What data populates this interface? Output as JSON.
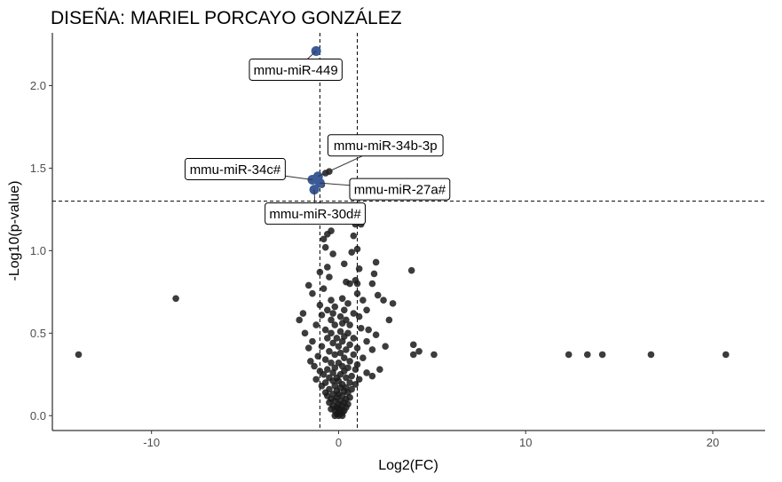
{
  "chart_data": {
    "type": "scatter",
    "title": "DISEÑA: MARIEL PORCAYO GONZÁLEZ",
    "xlabel": "Log2(FC)",
    "ylabel": "-Log10(p-value)",
    "xlim": [
      -15.3,
      22.8
    ],
    "ylim": [
      -0.09,
      2.32
    ],
    "xticks": [
      -10,
      0,
      10,
      20
    ],
    "yticks": [
      0.0,
      0.5,
      1.0,
      1.5,
      2.0
    ],
    "xtick_labels": [
      "-10",
      "0",
      "10",
      "20"
    ],
    "ytick_labels": [
      "0.0",
      "0.5",
      "1.0",
      "1.5",
      "2.0"
    ],
    "grid": false,
    "reference_lines": {
      "vertical": [
        -1,
        1
      ],
      "horizontal": [
        1.3
      ]
    },
    "colors": {
      "nonsignificant": "#1a1a1a",
      "significant": "#3a5a98"
    },
    "significant_points": [
      {
        "x": -1.2,
        "y": 2.21,
        "label": "mmu-miR-449"
      },
      {
        "x": -1.1,
        "y": 1.45,
        "label": "mmu-miR-34b-3p"
      },
      {
        "x": -1.4,
        "y": 1.43,
        "label": "mmu-miR-34c#"
      },
      {
        "x": -1.0,
        "y": 1.41,
        "label": "mmu-miR-27a#"
      },
      {
        "x": -1.3,
        "y": 1.37,
        "label": "mmu-miR-30d#"
      }
    ],
    "points": [
      [
        -13.9,
        0.37
      ],
      [
        -8.7,
        0.71
      ],
      [
        12.3,
        0.37
      ],
      [
        13.3,
        0.37
      ],
      [
        14.1,
        0.37
      ],
      [
        16.7,
        0.37
      ],
      [
        20.7,
        0.37
      ],
      [
        3.9,
        0.88
      ],
      [
        4.0,
        0.43
      ],
      [
        4.3,
        0.39
      ],
      [
        4.0,
        0.37
      ],
      [
        5.1,
        0.37
      ],
      [
        -0.7,
        1.47
      ],
      [
        -0.5,
        1.48
      ],
      [
        -0.9,
        1.4
      ],
      [
        -0.6,
        1.1
      ],
      [
        -0.4,
        1.12
      ],
      [
        0.9,
        1.16
      ],
      [
        1.2,
        1.16
      ],
      [
        0.8,
        1.09
      ],
      [
        -0.8,
        1.07
      ],
      [
        -0.7,
        1.02
      ],
      [
        1.0,
        1.01
      ],
      [
        -0.3,
        0.98
      ],
      [
        0.7,
        0.99
      ],
      [
        -0.6,
        0.9
      ],
      [
        2.0,
        0.93
      ],
      [
        0.3,
        0.92
      ],
      [
        1.1,
        0.89
      ],
      [
        -1.0,
        0.87
      ],
      [
        1.9,
        0.86
      ],
      [
        -0.5,
        0.84
      ],
      [
        0.9,
        0.82
      ],
      [
        -1.6,
        0.79
      ],
      [
        0.4,
        0.81
      ],
      [
        0.6,
        0.8
      ],
      [
        1.0,
        0.8
      ],
      [
        1.8,
        0.8
      ],
      [
        -0.8,
        0.77
      ],
      [
        1.0,
        0.74
      ],
      [
        -1.4,
        0.74
      ],
      [
        2.1,
        0.73
      ],
      [
        -0.4,
        0.7
      ],
      [
        0.2,
        0.71
      ],
      [
        1.3,
        0.7
      ],
      [
        2.4,
        0.7
      ],
      [
        -1.0,
        0.67
      ],
      [
        0.5,
        0.68
      ],
      [
        2.9,
        0.68
      ],
      [
        -0.2,
        0.66
      ],
      [
        0.3,
        0.64
      ],
      [
        -0.6,
        0.64
      ],
      [
        1.5,
        0.64
      ],
      [
        0.8,
        0.62
      ],
      [
        -0.3,
        0.62
      ],
      [
        0.1,
        0.6
      ],
      [
        -0.9,
        0.61
      ],
      [
        1.1,
        0.6
      ],
      [
        -0.4,
        0.58
      ],
      [
        0.4,
        0.58
      ],
      [
        -2.1,
        0.58
      ],
      [
        2.7,
        0.58
      ],
      [
        0.2,
        0.56
      ],
      [
        -0.2,
        0.55
      ],
      [
        -1.2,
        0.55
      ],
      [
        0.6,
        0.55
      ],
      [
        1.2,
        0.53
      ],
      [
        -0.7,
        0.52
      ],
      [
        0.1,
        0.51
      ],
      [
        -0.4,
        0.5
      ],
      [
        0.5,
        0.5
      ],
      [
        -1.8,
        0.5
      ],
      [
        2.0,
        0.49
      ],
      [
        0.3,
        0.48
      ],
      [
        -0.1,
        0.47
      ],
      [
        -0.6,
        0.47
      ],
      [
        0.8,
        0.47
      ],
      [
        -1.4,
        0.45
      ],
      [
        0.2,
        0.45
      ],
      [
        1.5,
        0.45
      ],
      [
        -0.3,
        0.44
      ],
      [
        0.6,
        0.43
      ],
      [
        -0.9,
        0.42
      ],
      [
        0.0,
        0.42
      ],
      [
        1.0,
        0.41
      ],
      [
        -1.6,
        0.41
      ],
      [
        0.4,
        0.4
      ],
      [
        -0.5,
        0.39
      ],
      [
        1.8,
        0.4
      ],
      [
        0.1,
        0.38
      ],
      [
        0.8,
        0.37
      ],
      [
        -0.2,
        0.37
      ],
      [
        -1.1,
        0.36
      ],
      [
        0.3,
        0.35
      ],
      [
        1.3,
        0.35
      ],
      [
        -0.7,
        0.34
      ],
      [
        0.6,
        0.33
      ],
      [
        -0.4,
        0.32
      ],
      [
        0.0,
        0.32
      ],
      [
        1.0,
        0.31
      ],
      [
        -1.3,
        0.3
      ],
      [
        0.2,
        0.3
      ],
      [
        -0.2,
        0.29
      ],
      [
        0.5,
        0.29
      ],
      [
        -0.6,
        0.28
      ],
      [
        0.9,
        0.28
      ],
      [
        -1.0,
        0.27
      ],
      [
        0.3,
        0.27
      ],
      [
        1.5,
        0.26
      ],
      [
        -0.3,
        0.26
      ],
      [
        0.1,
        0.25
      ],
      [
        -0.8,
        0.25
      ],
      [
        0.7,
        0.24
      ],
      [
        1.8,
        0.24
      ],
      [
        -0.1,
        0.23
      ],
      [
        -0.5,
        0.23
      ],
      [
        0.4,
        0.23
      ],
      [
        1.1,
        0.22
      ],
      [
        -1.2,
        0.22
      ],
      [
        0.0,
        0.21
      ],
      [
        -0.3,
        0.21
      ],
      [
        0.6,
        0.2
      ],
      [
        -0.7,
        0.2
      ],
      [
        0.2,
        0.19
      ],
      [
        0.9,
        0.19
      ],
      [
        -0.2,
        0.18
      ],
      [
        -0.9,
        0.18
      ],
      [
        0.4,
        0.17
      ],
      [
        0.1,
        0.17
      ],
      [
        -0.5,
        0.16
      ],
      [
        0.7,
        0.16
      ],
      [
        -0.1,
        0.15
      ],
      [
        0.3,
        0.15
      ],
      [
        -0.7,
        0.14
      ],
      [
        0.5,
        0.14
      ],
      [
        0.0,
        0.13
      ],
      [
        -0.3,
        0.13
      ],
      [
        0.2,
        0.12
      ],
      [
        -0.6,
        0.12
      ],
      [
        0.6,
        0.11
      ],
      [
        -0.1,
        0.11
      ],
      [
        0.4,
        0.1
      ],
      [
        -0.4,
        0.1
      ],
      [
        0.1,
        0.09
      ],
      [
        -0.2,
        0.09
      ],
      [
        0.3,
        0.08
      ],
      [
        -0.5,
        0.08
      ],
      [
        0.0,
        0.07
      ],
      [
        0.5,
        0.07
      ],
      [
        -0.3,
        0.06
      ],
      [
        0.2,
        0.06
      ],
      [
        -0.1,
        0.05
      ],
      [
        0.4,
        0.05
      ],
      [
        -0.4,
        0.04
      ],
      [
        0.1,
        0.04
      ],
      [
        0.3,
        0.03
      ],
      [
        -0.2,
        0.03
      ],
      [
        0.0,
        0.02
      ],
      [
        0.2,
        0.02
      ],
      [
        -0.1,
        0.01
      ],
      [
        0.1,
        0.01
      ],
      [
        0.0,
        0.0
      ],
      [
        -0.2,
        0.0
      ],
      [
        0.2,
        0.0
      ],
      [
        0.05,
        0.03
      ],
      [
        -0.05,
        0.05
      ],
      [
        -1.9,
        0.62
      ],
      [
        2.2,
        0.28
      ],
      [
        1.6,
        0.52
      ],
      [
        -1.5,
        0.33
      ],
      [
        2.5,
        0.42
      ]
    ]
  }
}
